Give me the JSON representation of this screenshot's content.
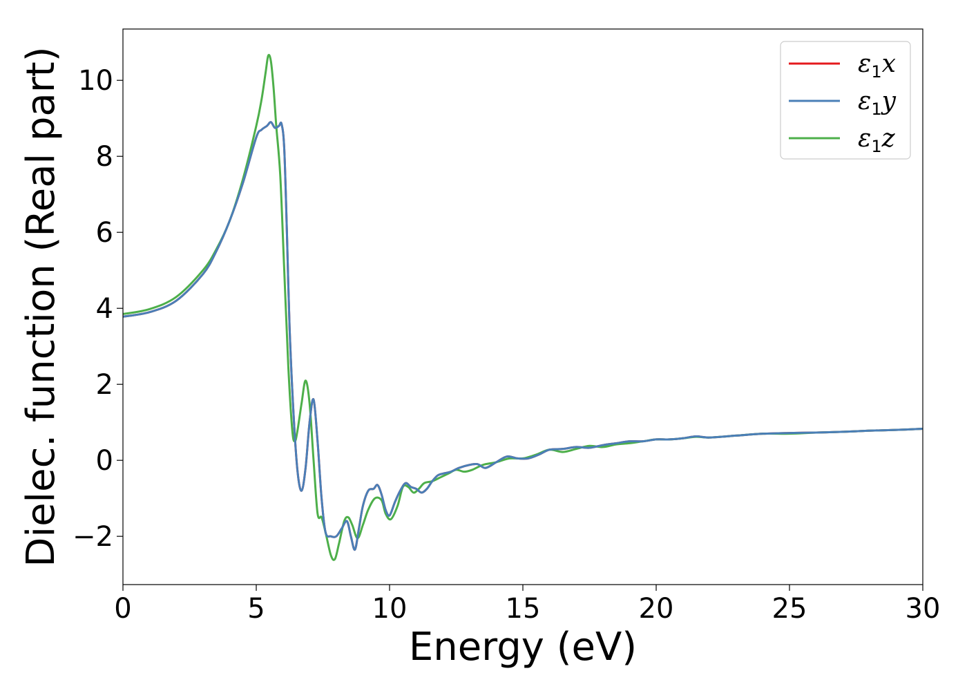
{
  "chart_data": {
    "type": "line",
    "title": "",
    "xlabel": "Energy (eV)",
    "ylabel": "Dielec. function (Real part)",
    "xlim": [
      0,
      30
    ],
    "ylim": [
      -3.27,
      11.35
    ],
    "xticks": [
      0,
      5,
      10,
      15,
      20,
      25,
      30
    ],
    "xtick_labels": [
      "0",
      "5",
      "10",
      "15",
      "20",
      "25",
      "30"
    ],
    "yticks": [
      -2,
      0,
      2,
      4,
      6,
      8,
      10
    ],
    "ytick_labels": [
      "−2",
      "0",
      "2",
      "4",
      "6",
      "8",
      "10"
    ],
    "grid": false,
    "legend_position": "top-right",
    "series": [
      {
        "name": "ε₁x",
        "legend_main": "ε",
        "legend_sub": "1",
        "legend_tail": "x",
        "color": "#e41a1c",
        "x": [
          0,
          1,
          2,
          3,
          3.5,
          4,
          4.5,
          5,
          5.2,
          5.4,
          5.55,
          5.7,
          5.85,
          5.95,
          6.05,
          6.15,
          6.25,
          6.4,
          6.55,
          6.7,
          6.85,
          7.0,
          7.15,
          7.3,
          7.45,
          7.6,
          7.8,
          8.0,
          8.2,
          8.4,
          8.55,
          8.7,
          8.85,
          9.0,
          9.2,
          9.4,
          9.55,
          9.7,
          9.85,
          10.0,
          10.2,
          10.4,
          10.6,
          10.8,
          11.0,
          11.2,
          11.4,
          11.6,
          11.8,
          12.0,
          12.3,
          12.6,
          13.0,
          13.3,
          13.6,
          14.0,
          14.4,
          14.8,
          15.2,
          15.6,
          16.0,
          16.5,
          17.0,
          17.5,
          18.0,
          18.5,
          19.0,
          19.5,
          20.0,
          20.5,
          21.0,
          21.5,
          22.0,
          23.0,
          24.0,
          25.0,
          26.0,
          27.0,
          28.0,
          29.0,
          30.0
        ],
        "y": [
          3.78,
          3.9,
          4.2,
          4.9,
          5.5,
          6.3,
          7.3,
          8.5,
          8.7,
          8.8,
          8.9,
          8.75,
          8.8,
          8.85,
          8.2,
          6.0,
          3.5,
          1.2,
          -0.3,
          -0.8,
          -0.2,
          1.0,
          1.6,
          0.5,
          -1.0,
          -1.9,
          -2.0,
          -2.0,
          -1.8,
          -1.6,
          -2.0,
          -2.35,
          -1.8,
          -1.2,
          -0.8,
          -0.75,
          -0.65,
          -0.9,
          -1.3,
          -1.45,
          -1.1,
          -0.8,
          -0.6,
          -0.7,
          -0.75,
          -0.85,
          -0.75,
          -0.55,
          -0.4,
          -0.35,
          -0.3,
          -0.2,
          -0.12,
          -0.1,
          -0.2,
          -0.05,
          0.1,
          0.05,
          0.05,
          0.15,
          0.28,
          0.3,
          0.35,
          0.33,
          0.4,
          0.45,
          0.5,
          0.5,
          0.55,
          0.55,
          0.58,
          0.63,
          0.6,
          0.65,
          0.7,
          0.72,
          0.73,
          0.75,
          0.78,
          0.8,
          0.83
        ]
      },
      {
        "name": "ε₁y",
        "legend_main": "ε",
        "legend_sub": "1",
        "legend_tail": "y",
        "color": "#4a7fb7",
        "x": [
          0,
          1,
          2,
          3,
          3.5,
          4,
          4.5,
          5,
          5.2,
          5.4,
          5.55,
          5.7,
          5.85,
          5.95,
          6.05,
          6.15,
          6.25,
          6.4,
          6.55,
          6.7,
          6.85,
          7.0,
          7.15,
          7.3,
          7.45,
          7.6,
          7.8,
          8.0,
          8.2,
          8.4,
          8.55,
          8.7,
          8.85,
          9.0,
          9.2,
          9.4,
          9.55,
          9.7,
          9.85,
          10.0,
          10.2,
          10.4,
          10.6,
          10.8,
          11.0,
          11.2,
          11.4,
          11.6,
          11.8,
          12.0,
          12.3,
          12.6,
          13.0,
          13.3,
          13.6,
          14.0,
          14.4,
          14.8,
          15.2,
          15.6,
          16.0,
          16.5,
          17.0,
          17.5,
          18.0,
          18.5,
          19.0,
          19.5,
          20.0,
          20.5,
          21.0,
          21.5,
          22.0,
          23.0,
          24.0,
          25.0,
          26.0,
          27.0,
          28.0,
          29.0,
          30.0
        ],
        "y": [
          3.78,
          3.9,
          4.2,
          4.9,
          5.5,
          6.3,
          7.3,
          8.5,
          8.7,
          8.8,
          8.9,
          8.75,
          8.8,
          8.85,
          8.2,
          6.0,
          3.5,
          1.2,
          -0.3,
          -0.8,
          -0.2,
          1.0,
          1.6,
          0.5,
          -1.0,
          -1.9,
          -2.0,
          -2.0,
          -1.8,
          -1.6,
          -2.0,
          -2.35,
          -1.8,
          -1.2,
          -0.8,
          -0.75,
          -0.65,
          -0.9,
          -1.3,
          -1.45,
          -1.1,
          -0.8,
          -0.6,
          -0.7,
          -0.75,
          -0.85,
          -0.75,
          -0.55,
          -0.4,
          -0.35,
          -0.3,
          -0.2,
          -0.12,
          -0.1,
          -0.2,
          -0.05,
          0.1,
          0.05,
          0.05,
          0.15,
          0.28,
          0.3,
          0.35,
          0.33,
          0.4,
          0.45,
          0.5,
          0.5,
          0.55,
          0.55,
          0.58,
          0.63,
          0.6,
          0.65,
          0.7,
          0.72,
          0.73,
          0.75,
          0.78,
          0.8,
          0.83
        ]
      },
      {
        "name": "ε₁z",
        "legend_main": "ε",
        "legend_sub": "1",
        "legend_tail": "z",
        "color": "#4daf4a",
        "x": [
          0,
          1,
          2,
          3,
          3.5,
          4,
          4.5,
          5,
          5.2,
          5.35,
          5.45,
          5.55,
          5.65,
          5.75,
          5.9,
          6.05,
          6.2,
          6.35,
          6.45,
          6.55,
          6.7,
          6.85,
          7.0,
          7.15,
          7.3,
          7.45,
          7.6,
          7.8,
          7.95,
          8.1,
          8.3,
          8.45,
          8.6,
          8.8,
          9.0,
          9.2,
          9.45,
          9.7,
          9.85,
          10.05,
          10.3,
          10.5,
          10.7,
          10.9,
          11.1,
          11.3,
          11.6,
          11.9,
          12.2,
          12.5,
          12.8,
          13.1,
          13.5,
          14.0,
          14.5,
          15.0,
          15.5,
          16.0,
          16.5,
          17.0,
          17.5,
          18.0,
          18.5,
          19.0,
          19.5,
          20.0,
          20.5,
          21.0,
          21.5,
          22.0,
          23.0,
          24.0,
          25.0,
          26.0,
          27.0,
          28.0,
          29.0,
          30.0
        ],
        "y": [
          3.85,
          3.98,
          4.3,
          5.0,
          5.55,
          6.3,
          7.4,
          8.8,
          9.5,
          10.2,
          10.65,
          10.5,
          9.8,
          8.8,
          7.5,
          5.0,
          2.5,
          0.8,
          0.5,
          0.8,
          1.5,
          2.1,
          1.5,
          0.0,
          -1.4,
          -1.5,
          -1.9,
          -2.5,
          -2.6,
          -2.2,
          -1.6,
          -1.5,
          -1.7,
          -2.05,
          -1.7,
          -1.3,
          -1.0,
          -1.05,
          -1.4,
          -1.55,
          -1.2,
          -0.7,
          -0.7,
          -0.85,
          -0.75,
          -0.6,
          -0.55,
          -0.45,
          -0.35,
          -0.25,
          -0.3,
          -0.25,
          -0.12,
          -0.05,
          0.05,
          0.05,
          0.15,
          0.28,
          0.22,
          0.3,
          0.38,
          0.35,
          0.42,
          0.45,
          0.5,
          0.55,
          0.55,
          0.58,
          0.62,
          0.6,
          0.65,
          0.7,
          0.7,
          0.73,
          0.75,
          0.78,
          0.8,
          0.83
        ]
      }
    ]
  }
}
